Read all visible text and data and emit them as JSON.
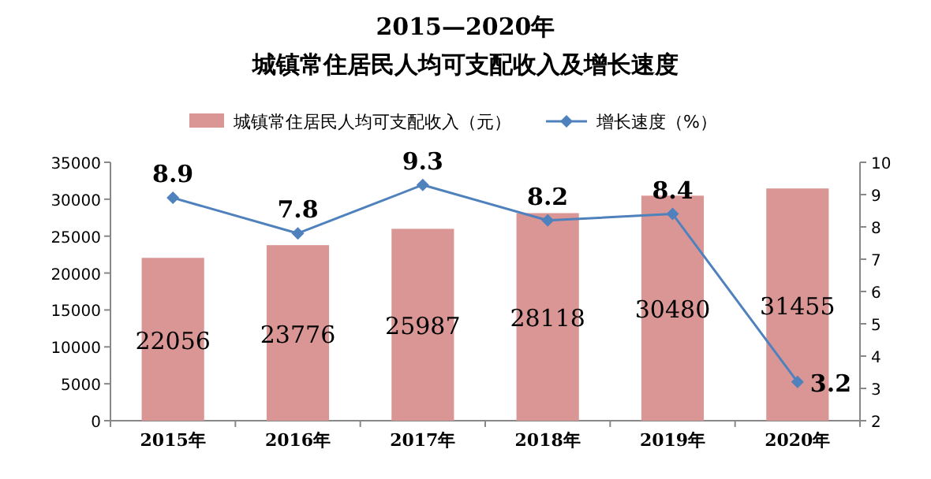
{
  "chart_data": {
    "type": "bar",
    "title": "2015—2020年",
    "subtitle": "城镇常住居民人均可支配收入及增长速度",
    "categories": [
      "2015年",
      "2016年",
      "2017年",
      "2018年",
      "2019年",
      "2020年"
    ],
    "series": [
      {
        "name": "城镇常住居民人均可支配收入（元）",
        "color": "#d99694",
        "values": [
          22056,
          23776,
          25987,
          28118,
          30480,
          31455
        ]
      },
      {
        "name": "增长速度（%）",
        "type": "line",
        "axis": "y2",
        "color": "#4f81bd",
        "marker": "diamond",
        "values": [
          8.9,
          7.8,
          9.3,
          8.2,
          8.4,
          3.2
        ]
      }
    ],
    "ylim": [
      0,
      35000
    ],
    "yticks": [
      0,
      5000,
      10000,
      15000,
      20000,
      25000,
      30000,
      35000
    ],
    "y2lim": [
      2,
      10
    ],
    "y2ticks": [
      2,
      3,
      4,
      5,
      6,
      7,
      8,
      9,
      10
    ],
    "data_labels": true,
    "legend": "top",
    "grid": false
  }
}
